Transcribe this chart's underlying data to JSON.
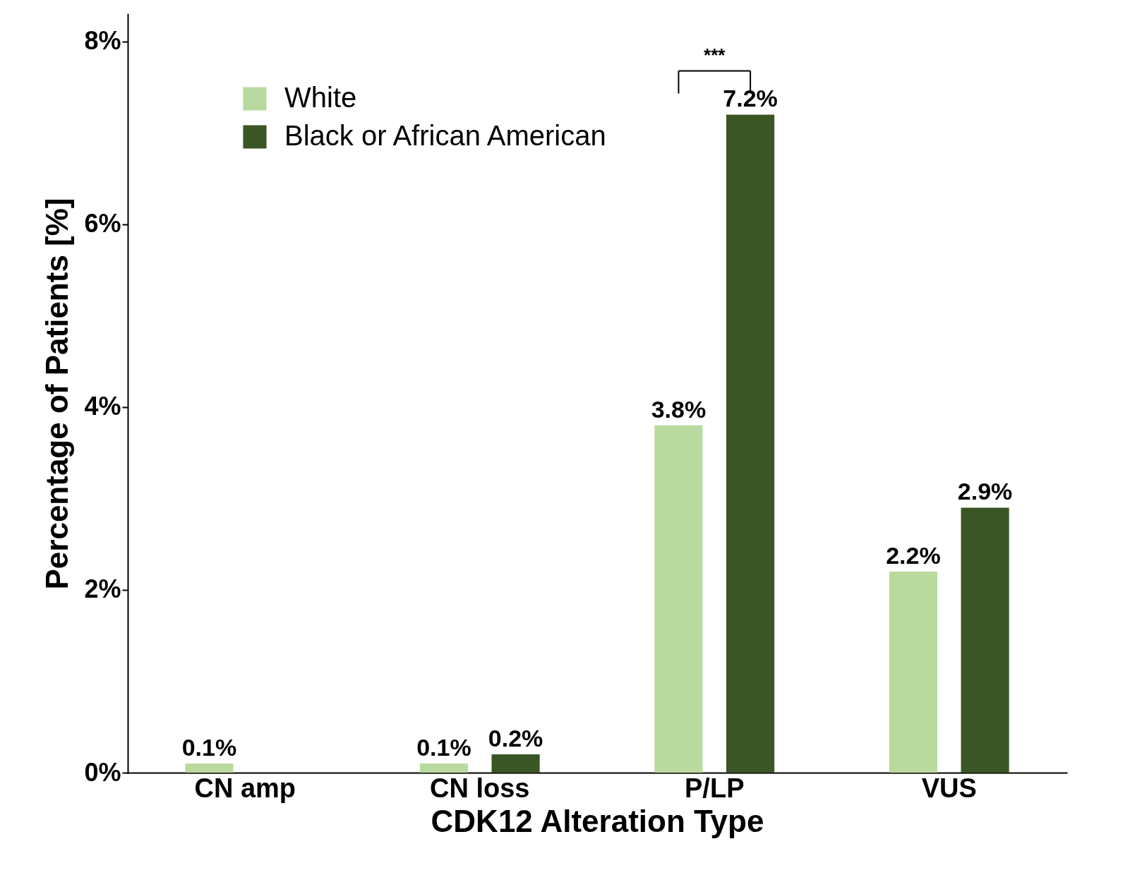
{
  "chart_data": {
    "type": "bar",
    "xlabel": "CDK12 Alteration Type",
    "ylabel": "Percentage of Patients [%]",
    "categories": [
      "CN amp",
      "CN loss",
      "P/LP",
      "VUS"
    ],
    "series": [
      {
        "name": "White",
        "color": "#b8da9f",
        "values": [
          0.1,
          0.1,
          3.8,
          2.2
        ],
        "value_labels": [
          "0.1%",
          "0.1%",
          "3.8%",
          "2.2%"
        ]
      },
      {
        "name": "Black or African American",
        "color": "#3a5624",
        "values": [
          null,
          0.2,
          7.2,
          2.9
        ],
        "value_labels": [
          null,
          "0.2%",
          "7.2%",
          "2.9%"
        ]
      }
    ],
    "ylim": [
      0,
      8.3
    ],
    "yticks": [
      {
        "value": 0,
        "label": "0%"
      },
      {
        "value": 2,
        "label": "2%"
      },
      {
        "value": 4,
        "label": "4%"
      },
      {
        "value": 6,
        "label": "6%"
      },
      {
        "value": 8,
        "label": "8%"
      }
    ],
    "grid": false,
    "legend": "top left",
    "annotations": [
      "***"
    ]
  }
}
